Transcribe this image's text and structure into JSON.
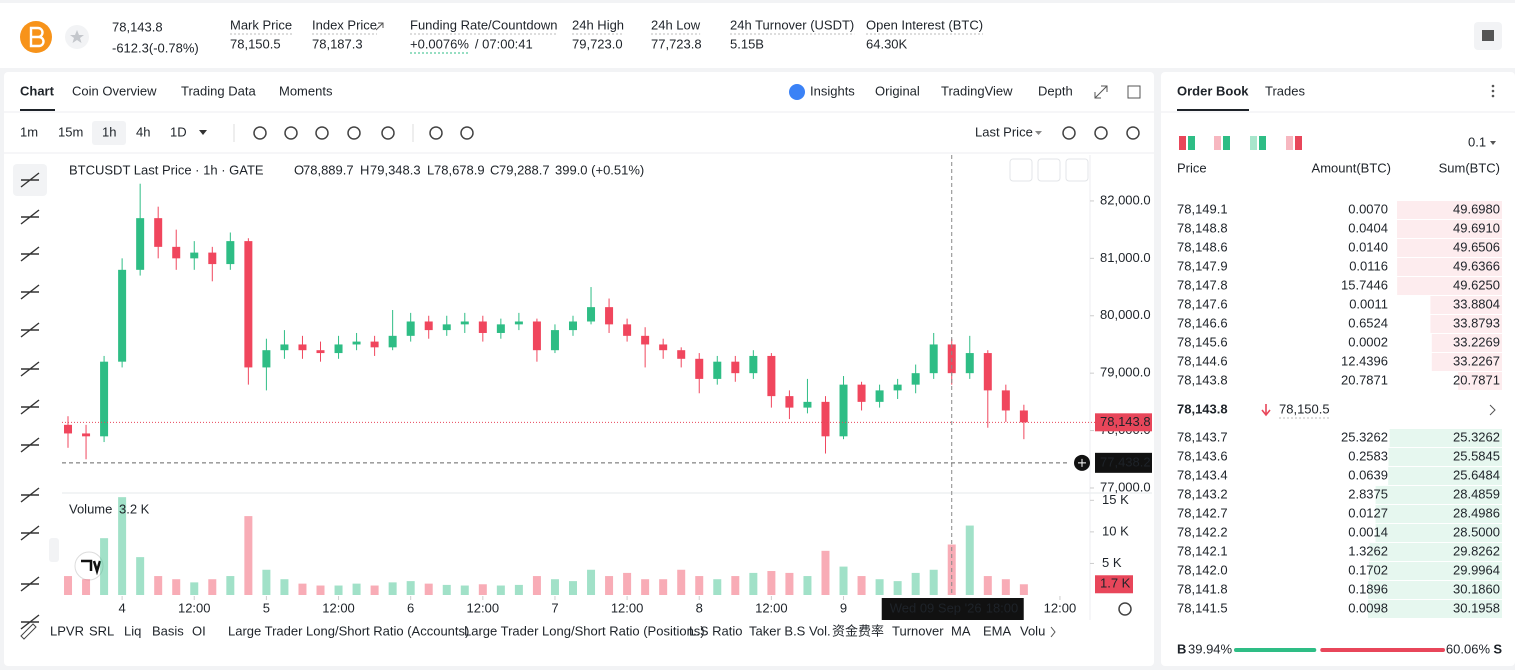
{
  "header": {
    "price": "78,143.8",
    "change": "-612.3(-0.78%)",
    "stats": [
      {
        "label": "Mark Price",
        "value": "78,150.5"
      },
      {
        "label": "Index Price",
        "value": "78,187.3"
      },
      {
        "label": "Funding Rate/Countdown",
        "value": "+0.0076%",
        "value2": "/ 07:00:41"
      },
      {
        "label": "24h High",
        "value": "79,723.0"
      },
      {
        "label": "24h Low",
        "value": "77,723.8"
      },
      {
        "label": "24h Turnover (USDT)",
        "value": "5.15B"
      },
      {
        "label": "Open Interest (BTC)",
        "value": "64.30K"
      }
    ]
  },
  "chart_panel": {
    "tabs": [
      "Chart",
      "Coin Overview",
      "Trading Data",
      "Moments"
    ],
    "views": [
      "Insights",
      "Original",
      "TradingView",
      "Depth"
    ],
    "intervals": [
      "1m",
      "15m",
      "1h",
      "4h",
      "1D"
    ],
    "price_type": "Last Price",
    "legend": {
      "symbol": "BTCUSDT Last Price · 1h · GATE",
      "o_label": "O",
      "o": "78,889.7",
      "h_label": "H",
      "h": "79,348.3",
      "l_label": "L",
      "l": "78,678.9",
      "c_label": "C",
      "c": "79,288.7",
      "change": "399.0 (+0.51%)"
    },
    "volume_name": "Volume",
    "volume_value": "3.2 K",
    "indicators": [
      "LPVR",
      "SRL",
      "Liq",
      "Basis",
      "OI",
      "Large Trader Long/Short Ratio (Accounts)",
      "Large Trader Long/Short Ratio (Positions)",
      "L.S Ratio",
      "Taker B.S Vol.",
      "资金费率",
      "Turnover",
      "MA",
      "EMA",
      "Volu"
    ]
  },
  "chart_data": {
    "type": "candlestick",
    "up_color": "#2ebd85",
    "down_color": "#f0465d",
    "grid": false,
    "x": [
      -9,
      -6,
      -3,
      0,
      3,
      6,
      9,
      12,
      15,
      18,
      21,
      24,
      27,
      30,
      33,
      36,
      39,
      42,
      45,
      48,
      51,
      54,
      57,
      60,
      63,
      66,
      69,
      72,
      75,
      78,
      81,
      84,
      87,
      90,
      93,
      96,
      99,
      102,
      105,
      108,
      111,
      114,
      117,
      120,
      123,
      126,
      129,
      132,
      135,
      138,
      141,
      144,
      147,
      150
    ],
    "open": [
      78100,
      77950,
      77900,
      79200,
      80800,
      81700,
      81200,
      81000,
      81100,
      80900,
      81300,
      79100,
      79400,
      79500,
      79400,
      79350,
      79500,
      79550,
      79450,
      79650,
      79900,
      79750,
      79850,
      79900,
      79700,
      79850,
      79900,
      79400,
      79750,
      79900,
      80150,
      79850,
      79650,
      79500,
      79400,
      79250,
      78900,
      79200,
      79000,
      79300,
      78600,
      78400,
      78500,
      77900,
      78800,
      78500,
      78700,
      78800,
      79000,
      79500,
      79000,
      79350,
      78700,
      78350
    ],
    "high": [
      78250,
      78100,
      79300,
      81000,
      82300,
      81900,
      81500,
      81300,
      81200,
      81450,
      81350,
      79600,
      79750,
      79650,
      79550,
      79650,
      79700,
      79650,
      80100,
      80050,
      80000,
      80000,
      80050,
      80000,
      79950,
      80050,
      79950,
      79850,
      80000,
      80500,
      80300,
      79950,
      79800,
      79600,
      79450,
      79350,
      79300,
      79300,
      79400,
      79350,
      78700,
      78900,
      78600,
      78950,
      78850,
      78800,
      78900,
      79150,
      79700,
      79600,
      79650,
      79400,
      78800,
      78450
    ],
    "low": [
      77700,
      77500,
      77800,
      79100,
      80700,
      81000,
      80800,
      80800,
      80600,
      80800,
      78800,
      78700,
      79250,
      79250,
      79200,
      79250,
      79400,
      79300,
      79400,
      79550,
      79600,
      79650,
      79700,
      79550,
      79600,
      79750,
      79200,
      79350,
      79650,
      79850,
      79700,
      79550,
      79100,
      79250,
      79100,
      78650,
      78800,
      78850,
      78900,
      78400,
      78200,
      78300,
      77600,
      77850,
      78350,
      78400,
      78550,
      78650,
      78900,
      78800,
      78900,
      78050,
      78150,
      77850
    ],
    "close": [
      77950,
      77900,
      79200,
      80800,
      81700,
      81200,
      81000,
      81100,
      80900,
      81300,
      79100,
      79400,
      79500,
      79400,
      79350,
      79500,
      79550,
      79450,
      79650,
      79900,
      79750,
      79850,
      79900,
      79700,
      79850,
      79900,
      79400,
      79750,
      79900,
      80150,
      79850,
      79650,
      79500,
      79400,
      79250,
      78900,
      79200,
      79000,
      79300,
      78600,
      78400,
      78500,
      77900,
      78800,
      78500,
      78700,
      78800,
      79000,
      79500,
      79000,
      79350,
      78700,
      78350,
      78143.8
    ],
    "xlim": [
      -10,
      161
    ],
    "xticks": [
      {
        "value": 0,
        "label": "4"
      },
      {
        "value": 12,
        "label": "12:00"
      },
      {
        "value": 24,
        "label": "5"
      },
      {
        "value": 36,
        "label": "12:00"
      },
      {
        "value": 48,
        "label": "6"
      },
      {
        "value": 60,
        "label": "12:00"
      },
      {
        "value": 72,
        "label": "7"
      },
      {
        "value": 84,
        "label": "12:00"
      },
      {
        "value": 96,
        "label": "8"
      },
      {
        "value": 108,
        "label": "12:00"
      },
      {
        "value": 120,
        "label": "9"
      },
      {
        "value": 156,
        "label": "12:00"
      }
    ],
    "ylim": [
      76930,
      82800
    ],
    "yticks": [
      {
        "value": 77000,
        "label": "77,000.0"
      },
      {
        "value": 78000,
        "label": "78,000.0"
      },
      {
        "value": 79000,
        "label": "79,000.0"
      },
      {
        "value": 80000,
        "label": "80,000.0"
      },
      {
        "value": 81000,
        "label": "81,000.0"
      },
      {
        "value": 82000,
        "label": "82,000.0"
      }
    ],
    "last_price": {
      "value": 78143.8,
      "label": "78,143.8"
    },
    "crosshair": {
      "x": 138,
      "date_label": "Wed 09 Sep '26",
      "time_label": "18:00",
      "y": {
        "value": 77438.2,
        "label": "77,438.2"
      }
    },
    "volume": {
      "values": [
        3000,
        2500,
        9000,
        15500,
        6000,
        3000,
        2500,
        2000,
        2500,
        3000,
        12500,
        4000,
        2500,
        1800,
        1500,
        1500,
        1800,
        1500,
        2000,
        2200,
        1800,
        1600,
        1500,
        1700,
        1500,
        1600,
        3000,
        2500,
        2200,
        4000,
        3000,
        3500,
        2500,
        2500,
        4000,
        3000,
        2500,
        3000,
        3500,
        3800,
        3500,
        3000,
        7000,
        4500,
        3000,
        2500,
        2200,
        3500,
        4000,
        8000,
        11000,
        3000,
        2500,
        1700
      ],
      "ylim": [
        0,
        16000
      ],
      "yticks": [
        {
          "value": 5000,
          "label": "5 K"
        },
        {
          "value": 10000,
          "label": "10 K"
        },
        {
          "value": 15000,
          "label": "15 K"
        }
      ],
      "current": {
        "value": 1700,
        "label": "1.7 K"
      }
    }
  },
  "order_book": {
    "tabs": [
      "Order Book",
      "Trades"
    ],
    "precision": "0.1",
    "columns": [
      "Price",
      "Amount(BTC)",
      "Sum(BTC)"
    ],
    "asks": [
      [
        "78,149.1",
        "0.0070",
        "49.6980"
      ],
      [
        "78,148.8",
        "0.0404",
        "49.6910"
      ],
      [
        "78,148.6",
        "0.0140",
        "49.6506"
      ],
      [
        "78,147.9",
        "0.0116",
        "49.6366"
      ],
      [
        "78,147.8",
        "15.7446",
        "49.6250"
      ],
      [
        "78,147.6",
        "0.0011",
        "33.8804"
      ],
      [
        "78,146.6",
        "0.6524",
        "33.8793"
      ],
      [
        "78,145.6",
        "0.0002",
        "33.2269"
      ],
      [
        "78,144.6",
        "12.4396",
        "33.2267"
      ],
      [
        "78,143.8",
        "20.7871",
        "20.7871"
      ]
    ],
    "mid_price": "78,143.8",
    "mark_price": "78,150.5",
    "bids": [
      [
        "78,143.7",
        "25.3262",
        "25.3262"
      ],
      [
        "78,143.6",
        "0.2583",
        "25.5845"
      ],
      [
        "78,143.4",
        "0.0639",
        "25.6484"
      ],
      [
        "78,143.2",
        "2.8375",
        "28.4859"
      ],
      [
        "78,142.7",
        "0.0127",
        "28.4986"
      ],
      [
        "78,142.2",
        "0.0014",
        "28.5000"
      ],
      [
        "78,142.1",
        "1.3262",
        "29.8262"
      ],
      [
        "78,142.0",
        "0.1702",
        "29.9964"
      ],
      [
        "78,141.8",
        "0.1896",
        "30.1860"
      ],
      [
        "78,141.5",
        "0.0098",
        "30.1958"
      ]
    ],
    "buy_label": "B",
    "buy_ratio": {
      "value": 39.94,
      "label": "39.94%"
    },
    "sell_ratio": {
      "value": 60.06,
      "label": "60.06%"
    },
    "sell_label": "S"
  }
}
